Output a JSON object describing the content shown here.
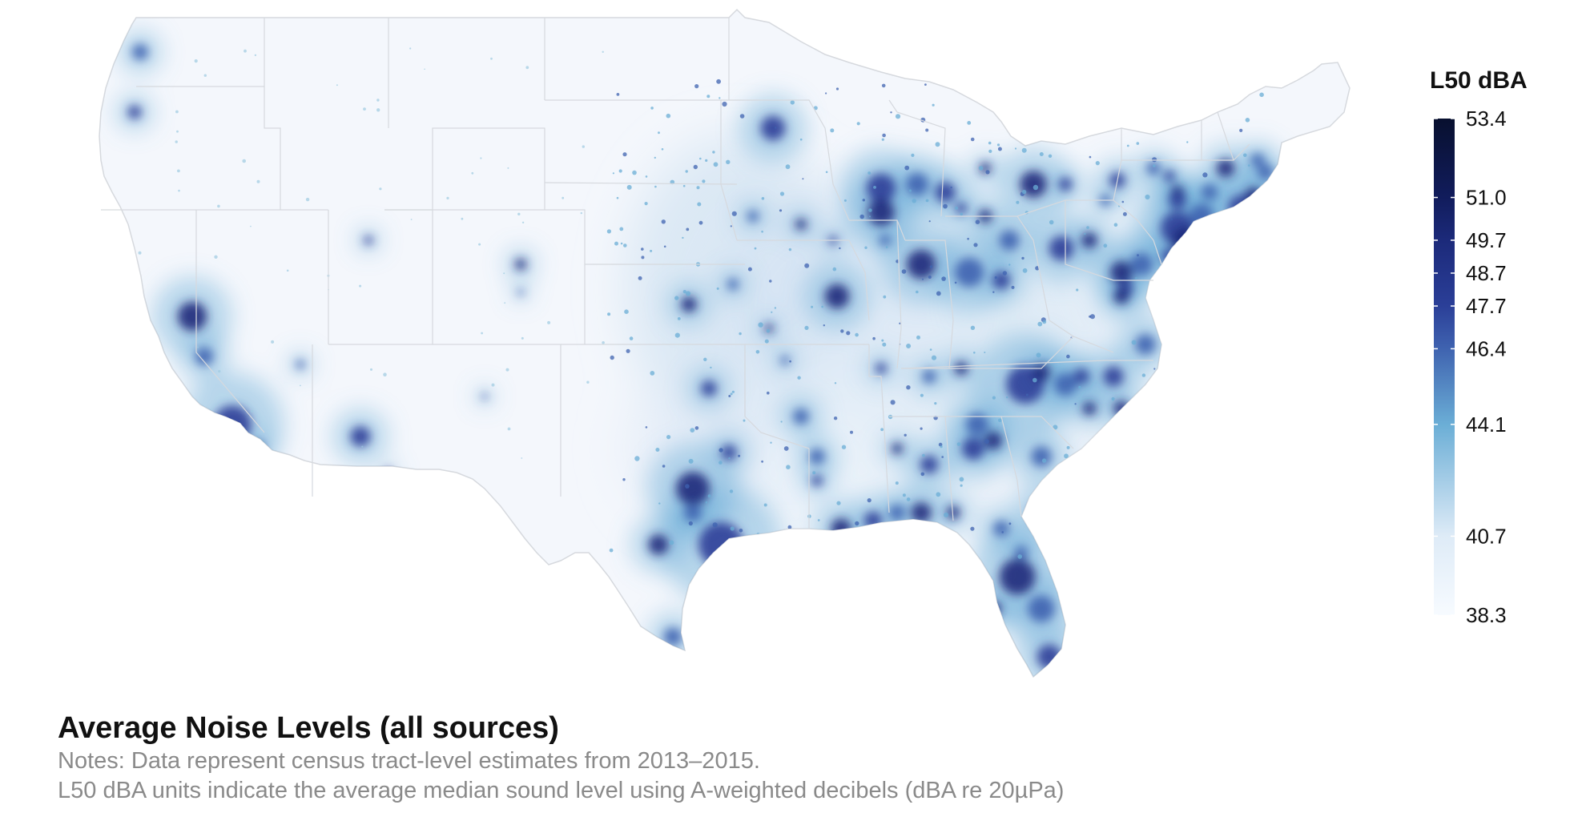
{
  "map": {
    "title": "Average Noise Levels (all sources)",
    "notes": [
      "Notes: Data represent census tract-level estimates from 2013–2015.",
      "L50 dBA units indicate the average median sound level using A-weighted decibels (dBA re 20µPa)"
    ],
    "region": "Contiguous United States",
    "basemap_fill": "#f4f7fc",
    "border_color": "#d6d9de",
    "legend": {
      "title": "L50 dBA",
      "min": 38.3,
      "max": 53.4,
      "ticks": [
        "53.4",
        "51.0",
        "49.7",
        "48.7",
        "47.7",
        "46.4",
        "44.1",
        "40.7",
        "38.3"
      ],
      "tick_values": [
        53.4,
        51.0,
        49.7,
        48.7,
        47.7,
        46.4,
        44.1,
        40.7,
        38.3
      ],
      "color_stops": [
        {
          "value": 38.3,
          "color": "#f7fbff"
        },
        {
          "value": 40.7,
          "color": "#deebf7"
        },
        {
          "value": 44.1,
          "color": "#6baed6"
        },
        {
          "value": 46.4,
          "color": "#3f63b0"
        },
        {
          "value": 47.7,
          "color": "#2b3f98"
        },
        {
          "value": 48.7,
          "color": "#233489"
        },
        {
          "value": 49.7,
          "color": "#1c2a7a"
        },
        {
          "value": 51.0,
          "color": "#111c5c"
        },
        {
          "value": 53.4,
          "color": "#08102f"
        }
      ]
    }
  }
}
